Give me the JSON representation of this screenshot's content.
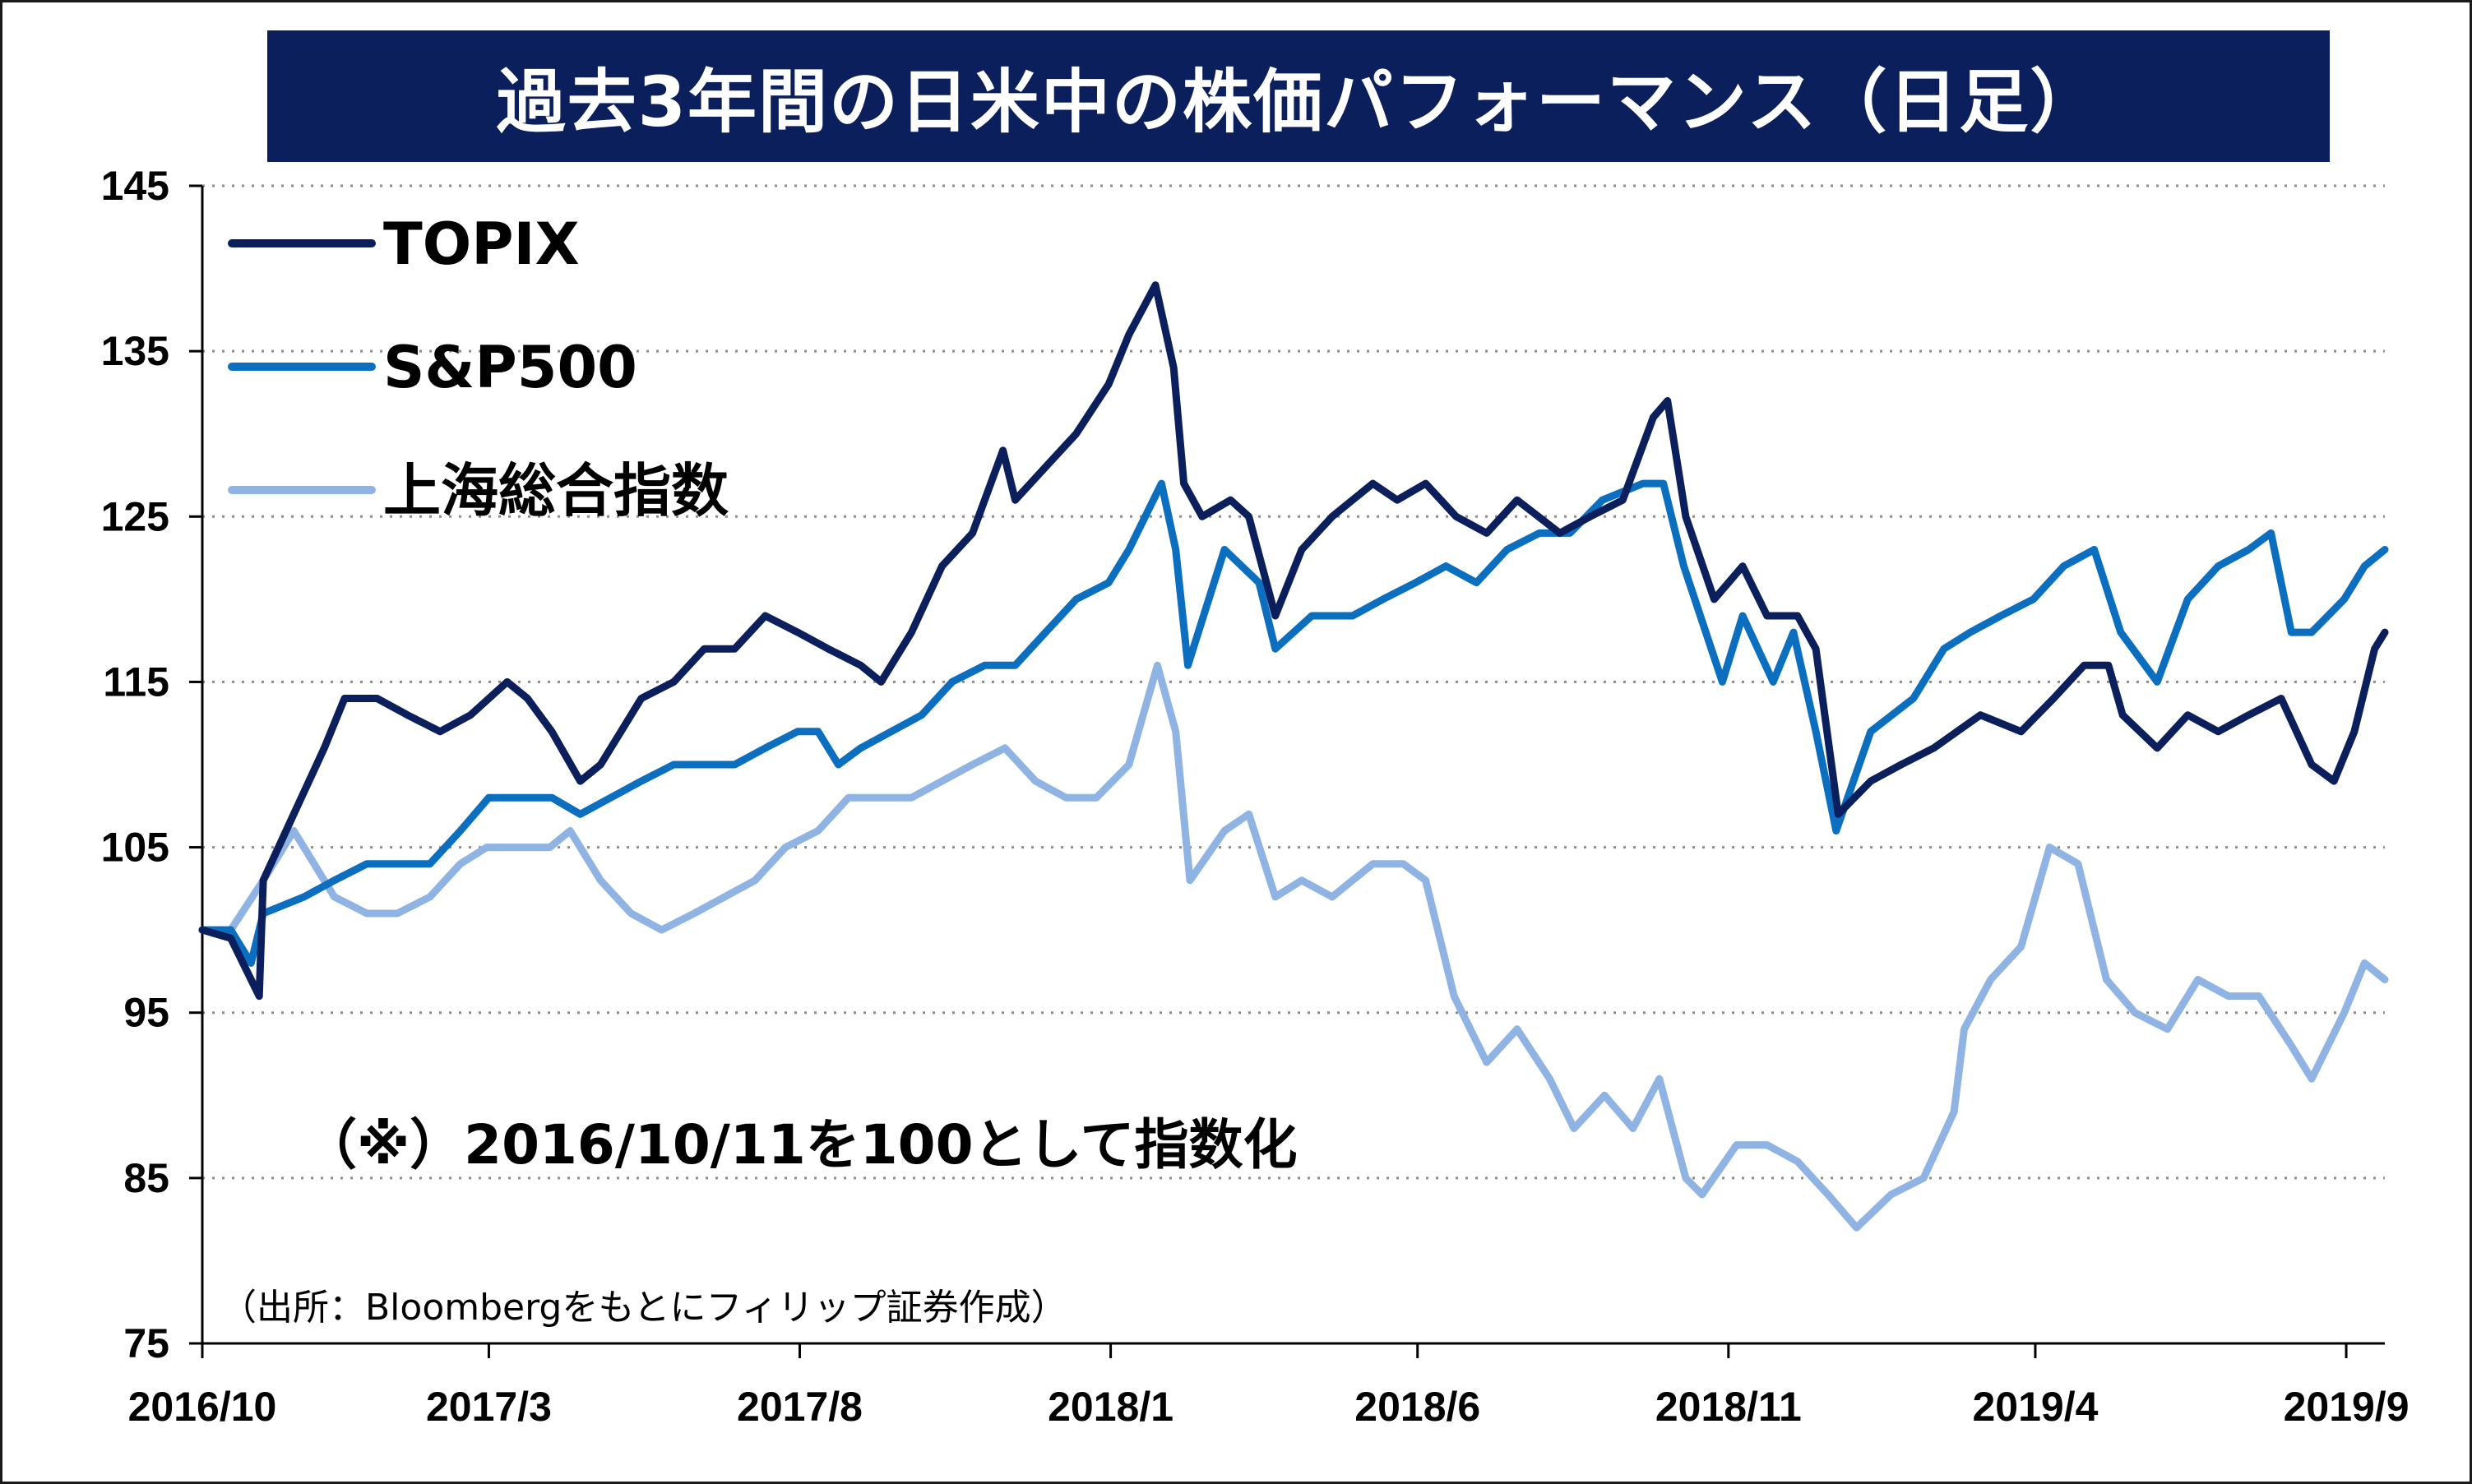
{
  "chart_data": {
    "type": "line",
    "title": "過去3年間の日米中の株価パフォーマンス（日足）",
    "ylim": [
      75,
      145
    ],
    "yticks": [
      145,
      135,
      125,
      115,
      105,
      95,
      85,
      75
    ],
    "xlim": [
      "2016-10-11",
      "2019-09-20"
    ],
    "xticks": [
      {
        "date": "2016-10-11",
        "label": "2016/10"
      },
      {
        "date": "2017-03-01",
        "label": "2017/3"
      },
      {
        "date": "2017-08-01",
        "label": "2017/8"
      },
      {
        "date": "2018-01-01",
        "label": "2018/1"
      },
      {
        "date": "2018-06-01",
        "label": "2018/6"
      },
      {
        "date": "2018-11-01",
        "label": "2018/11"
      },
      {
        "date": "2019-04-01",
        "label": "2019/4"
      },
      {
        "date": "2019-09-01",
        "label": "2019/9"
      }
    ],
    "grid": "horizontal-dotted",
    "legend_position": "top-left",
    "annotation": "（※）2016/10/11を100として指数化",
    "source": "（出所：Bloombergをもとにフィリップ証券作成）",
    "series": [
      {
        "name": "TOPIX",
        "color": "#0b1f5c",
        "points": [
          [
            "2016-10-11",
            100
          ],
          [
            "2016-10-25",
            99.5
          ],
          [
            "2016-11-08",
            96
          ],
          [
            "2016-11-10",
            103
          ],
          [
            "2016-11-25",
            107
          ],
          [
            "2016-12-10",
            111
          ],
          [
            "2016-12-20",
            114
          ],
          [
            "2017-01-05",
            114
          ],
          [
            "2017-01-20",
            113
          ],
          [
            "2017-02-05",
            112
          ],
          [
            "2017-02-20",
            113
          ],
          [
            "2017-03-10",
            115
          ],
          [
            "2017-03-20",
            114
          ],
          [
            "2017-04-01",
            112
          ],
          [
            "2017-04-15",
            109
          ],
          [
            "2017-04-25",
            110
          ],
          [
            "2017-05-05",
            112
          ],
          [
            "2017-05-15",
            114
          ],
          [
            "2017-05-31",
            115
          ],
          [
            "2017-06-15",
            117
          ],
          [
            "2017-06-30",
            117
          ],
          [
            "2017-07-15",
            119
          ],
          [
            "2017-07-31",
            118
          ],
          [
            "2017-08-15",
            117
          ],
          [
            "2017-08-31",
            116
          ],
          [
            "2017-09-10",
            115
          ],
          [
            "2017-09-25",
            118
          ],
          [
            "2017-10-10",
            122
          ],
          [
            "2017-10-25",
            124
          ],
          [
            "2017-11-09",
            129
          ],
          [
            "2017-11-15",
            126
          ],
          [
            "2017-11-30",
            128
          ],
          [
            "2017-12-15",
            130
          ],
          [
            "2017-12-31",
            133
          ],
          [
            "2018-01-10",
            136
          ],
          [
            "2018-01-23",
            139
          ],
          [
            "2018-02-01",
            134
          ],
          [
            "2018-02-06",
            127
          ],
          [
            "2018-02-15",
            125
          ],
          [
            "2018-03-01",
            126
          ],
          [
            "2018-03-10",
            125
          ],
          [
            "2018-03-23",
            119
          ],
          [
            "2018-04-05",
            123
          ],
          [
            "2018-04-20",
            125
          ],
          [
            "2018-05-10",
            127
          ],
          [
            "2018-05-22",
            126
          ],
          [
            "2018-06-05",
            127
          ],
          [
            "2018-06-20",
            125
          ],
          [
            "2018-07-05",
            124
          ],
          [
            "2018-07-20",
            126
          ],
          [
            "2018-08-10",
            124
          ],
          [
            "2018-08-25",
            125
          ],
          [
            "2018-09-10",
            126
          ],
          [
            "2018-09-25",
            131
          ],
          [
            "2018-10-02",
            132
          ],
          [
            "2018-10-11",
            125
          ],
          [
            "2018-10-25",
            120
          ],
          [
            "2018-11-08",
            122
          ],
          [
            "2018-11-20",
            119
          ],
          [
            "2018-12-05",
            119
          ],
          [
            "2018-12-14",
            117
          ],
          [
            "2018-12-25",
            107
          ],
          [
            "2019-01-10",
            109
          ],
          [
            "2019-01-25",
            110
          ],
          [
            "2019-02-10",
            111
          ],
          [
            "2019-03-05",
            113
          ],
          [
            "2019-03-25",
            112
          ],
          [
            "2019-04-10",
            114
          ],
          [
            "2019-04-25",
            116
          ],
          [
            "2019-05-07",
            116
          ],
          [
            "2019-05-14",
            113
          ],
          [
            "2019-05-31",
            111
          ],
          [
            "2019-06-15",
            113
          ],
          [
            "2019-06-30",
            112
          ],
          [
            "2019-07-15",
            113
          ],
          [
            "2019-07-31",
            114
          ],
          [
            "2019-08-15",
            110
          ],
          [
            "2019-08-26",
            109
          ],
          [
            "2019-09-05",
            112
          ],
          [
            "2019-09-15",
            117
          ],
          [
            "2019-09-20",
            118
          ]
        ]
      },
      {
        "name": "S&P500",
        "color": "#0b6ebf",
        "points": [
          [
            "2016-10-11",
            100
          ],
          [
            "2016-10-25",
            100
          ],
          [
            "2016-11-04",
            98
          ],
          [
            "2016-11-10",
            101
          ],
          [
            "2016-11-30",
            102
          ],
          [
            "2016-12-15",
            103
          ],
          [
            "2016-12-31",
            104
          ],
          [
            "2017-01-15",
            104
          ],
          [
            "2017-01-31",
            104
          ],
          [
            "2017-02-15",
            106
          ],
          [
            "2017-03-01",
            108
          ],
          [
            "2017-03-15",
            108
          ],
          [
            "2017-04-01",
            108
          ],
          [
            "2017-04-15",
            107
          ],
          [
            "2017-04-30",
            108
          ],
          [
            "2017-05-15",
            109
          ],
          [
            "2017-05-31",
            110
          ],
          [
            "2017-06-15",
            110
          ],
          [
            "2017-06-30",
            110
          ],
          [
            "2017-07-15",
            111
          ],
          [
            "2017-07-31",
            112
          ],
          [
            "2017-08-10",
            112
          ],
          [
            "2017-08-20",
            110
          ],
          [
            "2017-08-31",
            111
          ],
          [
            "2017-09-15",
            112
          ],
          [
            "2017-09-30",
            113
          ],
          [
            "2017-10-15",
            115
          ],
          [
            "2017-10-31",
            116
          ],
          [
            "2017-11-15",
            116
          ],
          [
            "2017-11-30",
            118
          ],
          [
            "2017-12-15",
            120
          ],
          [
            "2017-12-31",
            121
          ],
          [
            "2018-01-10",
            123
          ],
          [
            "2018-01-26",
            127
          ],
          [
            "2018-02-02",
            123
          ],
          [
            "2018-02-08",
            116
          ],
          [
            "2018-02-26",
            123
          ],
          [
            "2018-03-15",
            121
          ],
          [
            "2018-03-23",
            117
          ],
          [
            "2018-04-10",
            119
          ],
          [
            "2018-04-30",
            119
          ],
          [
            "2018-05-15",
            120
          ],
          [
            "2018-05-31",
            121
          ],
          [
            "2018-06-15",
            122
          ],
          [
            "2018-06-30",
            121
          ],
          [
            "2018-07-15",
            123
          ],
          [
            "2018-07-31",
            124
          ],
          [
            "2018-08-15",
            124
          ],
          [
            "2018-08-31",
            126
          ],
          [
            "2018-09-20",
            127
          ],
          [
            "2018-09-30",
            127
          ],
          [
            "2018-10-10",
            122
          ],
          [
            "2018-10-29",
            115
          ],
          [
            "2018-11-08",
            119
          ],
          [
            "2018-11-23",
            115
          ],
          [
            "2018-12-03",
            118
          ],
          [
            "2018-12-14",
            112
          ],
          [
            "2018-12-24",
            106
          ],
          [
            "2019-01-10",
            112
          ],
          [
            "2019-01-31",
            114
          ],
          [
            "2019-02-15",
            117
          ],
          [
            "2019-02-28",
            118
          ],
          [
            "2019-03-15",
            119
          ],
          [
            "2019-03-31",
            120
          ],
          [
            "2019-04-15",
            122
          ],
          [
            "2019-04-30",
            123
          ],
          [
            "2019-05-13",
            118
          ],
          [
            "2019-05-31",
            115
          ],
          [
            "2019-06-15",
            120
          ],
          [
            "2019-06-30",
            122
          ],
          [
            "2019-07-15",
            123
          ],
          [
            "2019-07-26",
            124
          ],
          [
            "2019-08-05",
            118
          ],
          [
            "2019-08-15",
            118
          ],
          [
            "2019-08-31",
            120
          ],
          [
            "2019-09-10",
            122
          ],
          [
            "2019-09-20",
            123
          ]
        ]
      },
      {
        "name": "上海総合指数",
        "color": "#8fb4e3",
        "points": [
          [
            "2016-10-11",
            100
          ],
          [
            "2016-10-25",
            100
          ],
          [
            "2016-11-10",
            103
          ],
          [
            "2016-11-25",
            106
          ],
          [
            "2016-12-05",
            104
          ],
          [
            "2016-12-15",
            102
          ],
          [
            "2016-12-31",
            101
          ],
          [
            "2017-01-15",
            101
          ],
          [
            "2017-01-31",
            102
          ],
          [
            "2017-02-15",
            104
          ],
          [
            "2017-02-28",
            105
          ],
          [
            "2017-03-15",
            105
          ],
          [
            "2017-03-31",
            105
          ],
          [
            "2017-04-10",
            106
          ],
          [
            "2017-04-25",
            103
          ],
          [
            "2017-05-10",
            101
          ],
          [
            "2017-05-25",
            100
          ],
          [
            "2017-06-10",
            101
          ],
          [
            "2017-06-25",
            102
          ],
          [
            "2017-07-10",
            103
          ],
          [
            "2017-07-25",
            105
          ],
          [
            "2017-08-10",
            106
          ],
          [
            "2017-08-25",
            108
          ],
          [
            "2017-09-10",
            108
          ],
          [
            "2017-09-25",
            108
          ],
          [
            "2017-10-10",
            109
          ],
          [
            "2017-10-25",
            110
          ],
          [
            "2017-11-10",
            111
          ],
          [
            "2017-11-25",
            109
          ],
          [
            "2017-12-10",
            108
          ],
          [
            "2017-12-25",
            108
          ],
          [
            "2018-01-10",
            110
          ],
          [
            "2018-01-24",
            116
          ],
          [
            "2018-02-02",
            112
          ],
          [
            "2018-02-09",
            103
          ],
          [
            "2018-02-26",
            106
          ],
          [
            "2018-03-10",
            107
          ],
          [
            "2018-03-23",
            102
          ],
          [
            "2018-04-05",
            103
          ],
          [
            "2018-04-20",
            102
          ],
          [
            "2018-05-10",
            104
          ],
          [
            "2018-05-25",
            104
          ],
          [
            "2018-06-05",
            103
          ],
          [
            "2018-06-19",
            96
          ],
          [
            "2018-07-05",
            92
          ],
          [
            "2018-07-20",
            94
          ],
          [
            "2018-08-05",
            91
          ],
          [
            "2018-08-17",
            88
          ],
          [
            "2018-09-01",
            90
          ],
          [
            "2018-09-15",
            88
          ],
          [
            "2018-09-28",
            91
          ],
          [
            "2018-10-11",
            85
          ],
          [
            "2018-10-19",
            84
          ],
          [
            "2018-11-05",
            87
          ],
          [
            "2018-11-20",
            87
          ],
          [
            "2018-12-05",
            86
          ],
          [
            "2018-12-20",
            84
          ],
          [
            "2019-01-03",
            82
          ],
          [
            "2019-01-20",
            84
          ],
          [
            "2019-02-05",
            85
          ],
          [
            "2019-02-20",
            89
          ],
          [
            "2019-02-25",
            94
          ],
          [
            "2019-03-10",
            97
          ],
          [
            "2019-03-25",
            99
          ],
          [
            "2019-04-08",
            105
          ],
          [
            "2019-04-22",
            104
          ],
          [
            "2019-05-06",
            97
          ],
          [
            "2019-05-20",
            95
          ],
          [
            "2019-06-05",
            94
          ],
          [
            "2019-06-20",
            97
          ],
          [
            "2019-07-05",
            96
          ],
          [
            "2019-07-20",
            96
          ],
          [
            "2019-08-05",
            93
          ],
          [
            "2019-08-15",
            91
          ],
          [
            "2019-08-31",
            95
          ],
          [
            "2019-09-10",
            98
          ],
          [
            "2019-09-20",
            97
          ]
        ]
      }
    ]
  }
}
